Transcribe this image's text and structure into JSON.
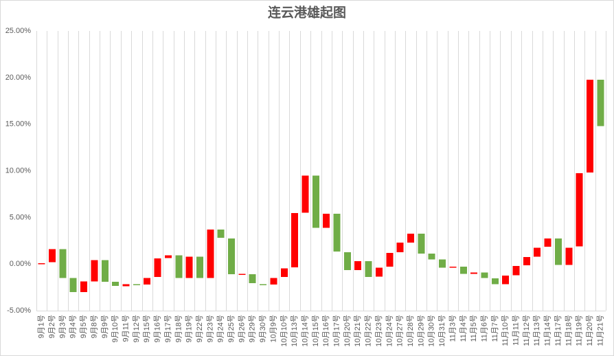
{
  "chart_data": {
    "type": "bar",
    "title": "连云港雄起图",
    "ylim": [
      -5,
      25
    ],
    "y_step": 5,
    "y_ticks": [
      "-5.00%",
      "0.00%",
      "5.00%",
      "10.00%",
      "15.00%",
      "20.00%",
      "25.00%"
    ],
    "grid": {
      "vertical": true,
      "horizontal": false
    },
    "legend": false,
    "colors": {
      "up": "#FF0000",
      "down": "#70AD47"
    },
    "categories": [
      "9月1号",
      "9月2号",
      "9月3号",
      "9月4号",
      "9月5号",
      "9月8号",
      "9月9号",
      "9月10号",
      "9月11号",
      "9月12号",
      "9月15号",
      "9月16号",
      "9月17号",
      "9月18号",
      "9月19号",
      "9月22号",
      "9月23号",
      "9月24号",
      "9月25号",
      "9月26号",
      "9月29号",
      "9月30号",
      "10月9号",
      "10月10号",
      "10月13号",
      "10月14号",
      "10月15号",
      "10月16号",
      "10月17号",
      "10月20号",
      "10月21号",
      "10月22号",
      "10月23号",
      "10月24号",
      "10月27号",
      "10月28号",
      "10月29号",
      "10月30号",
      "10月31号",
      "11月3号",
      "11月4号",
      "11月5号",
      "11月6号",
      "11月7号",
      "11月10号",
      "11月11号",
      "11月12号",
      "11月13号",
      "11月14号",
      "11月17号",
      "11月18号",
      "11月19号",
      "11月20号",
      "11月21号"
    ],
    "open": [
      0.0,
      0.2,
      1.6,
      -1.5,
      -3.0,
      -1.85,
      0.4,
      -1.9,
      -2.4,
      -2.15,
      -2.2,
      -1.4,
      0.65,
      0.95,
      -1.5,
      0.8,
      -1.5,
      3.7,
      2.75,
      -1.15,
      -1.1,
      -2.15,
      -2.2,
      -1.4,
      -0.35,
      5.5,
      9.5,
      3.9,
      5.4,
      1.25,
      -0.65,
      0.3,
      -1.35,
      -0.3,
      1.25,
      2.3,
      3.25,
      1.1,
      0.5,
      -0.4,
      -0.3,
      -1.05,
      -0.9,
      -1.55,
      -2.15,
      -1.2,
      -0.15,
      0.8,
      1.85,
      2.75,
      -0.1,
      1.9,
      9.8,
      19.75
    ],
    "close": [
      0.1,
      1.6,
      -1.5,
      -3.0,
      -1.85,
      0.4,
      -1.9,
      -2.35,
      -2.15,
      -2.2,
      -1.5,
      0.6,
      0.95,
      -1.5,
      0.8,
      -1.5,
      3.7,
      2.8,
      -1.1,
      -1.05,
      -2.05,
      -2.2,
      -1.5,
      -0.45,
      5.45,
      9.5,
      3.9,
      5.4,
      1.35,
      -0.65,
      0.3,
      -1.4,
      -0.4,
      1.2,
      2.3,
      3.25,
      1.1,
      0.5,
      -0.4,
      -0.3,
      -1.05,
      -0.9,
      -1.5,
      -2.15,
      -1.25,
      -0.2,
      0.75,
      1.75,
      2.75,
      -0.1,
      1.75,
      9.75,
      19.75,
      14.8
    ]
  }
}
